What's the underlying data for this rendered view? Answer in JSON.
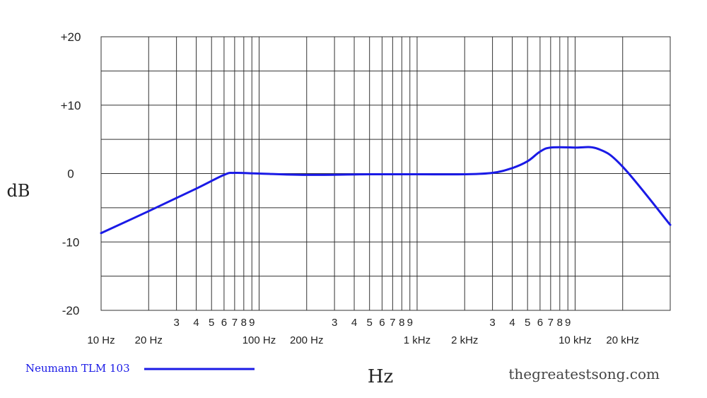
{
  "chart_data": {
    "type": "line",
    "title": "",
    "xlabel": "Hz",
    "ylabel": "dB",
    "x_scale": "log",
    "xlim": [
      10,
      40000
    ],
    "ylim": [
      -20,
      20
    ],
    "grid": true,
    "y_ticks": [
      {
        "value": 20,
        "label": "+20"
      },
      {
        "value": 10,
        "label": "+10"
      },
      {
        "value": 0,
        "label": "0"
      },
      {
        "value": -10,
        "label": "-10"
      },
      {
        "value": -20,
        "label": "-20"
      }
    ],
    "x_gridlines": [
      10,
      20,
      30,
      40,
      50,
      60,
      70,
      80,
      90,
      100,
      200,
      300,
      400,
      500,
      600,
      700,
      800,
      900,
      1000,
      2000,
      3000,
      4000,
      5000,
      6000,
      7000,
      8000,
      9000,
      10000,
      20000,
      40000
    ],
    "x_ticks_minor": [
      {
        "value": 30,
        "label": "3"
      },
      {
        "value": 40,
        "label": "4"
      },
      {
        "value": 50,
        "label": "5"
      },
      {
        "value": 60,
        "label": "6"
      },
      {
        "value": 70,
        "label": "7"
      },
      {
        "value": 80,
        "label": "8"
      },
      {
        "value": 90,
        "label": "9"
      },
      {
        "value": 300,
        "label": "3"
      },
      {
        "value": 400,
        "label": "4"
      },
      {
        "value": 500,
        "label": "5"
      },
      {
        "value": 600,
        "label": "6"
      },
      {
        "value": 700,
        "label": "7"
      },
      {
        "value": 800,
        "label": "8"
      },
      {
        "value": 900,
        "label": "9"
      },
      {
        "value": 3000,
        "label": "3"
      },
      {
        "value": 4000,
        "label": "4"
      },
      {
        "value": 5000,
        "label": "5"
      },
      {
        "value": 6000,
        "label": "6"
      },
      {
        "value": 7000,
        "label": "7"
      },
      {
        "value": 8000,
        "label": "8"
      },
      {
        "value": 9000,
        "label": "9"
      }
    ],
    "x_ticks_major": [
      {
        "value": 10,
        "label": "10 Hz"
      },
      {
        "value": 20,
        "label": "20 Hz"
      },
      {
        "value": 100,
        "label": "100 Hz"
      },
      {
        "value": 200,
        "label": "200 Hz"
      },
      {
        "value": 1000,
        "label": "1 kHz"
      },
      {
        "value": 2000,
        "label": "2 kHz"
      },
      {
        "value": 10000,
        "label": "10 kHz"
      },
      {
        "value": 20000,
        "label": "20 kHz"
      }
    ],
    "legend_position": "bottom-left",
    "series": [
      {
        "name": "Neumann TLM 103",
        "color": "#1a1ae6",
        "points": [
          {
            "x": 10,
            "y": -8.7
          },
          {
            "x": 20,
            "y": -5.5
          },
          {
            "x": 40,
            "y": -2.2
          },
          {
            "x": 60,
            "y": -0.2
          },
          {
            "x": 70,
            "y": 0.1
          },
          {
            "x": 100,
            "y": 0.0
          },
          {
            "x": 200,
            "y": -0.2
          },
          {
            "x": 500,
            "y": -0.1
          },
          {
            "x": 1000,
            "y": -0.1
          },
          {
            "x": 2000,
            "y": -0.1
          },
          {
            "x": 3000,
            "y": 0.1
          },
          {
            "x": 4000,
            "y": 0.8
          },
          {
            "x": 5000,
            "y": 1.8
          },
          {
            "x": 6000,
            "y": 3.2
          },
          {
            "x": 7000,
            "y": 3.8
          },
          {
            "x": 10000,
            "y": 3.8
          },
          {
            "x": 14000,
            "y": 3.6
          },
          {
            "x": 20000,
            "y": 1.0
          },
          {
            "x": 40000,
            "y": -7.5
          }
        ]
      }
    ]
  },
  "credit": "thegreatestsong.com"
}
